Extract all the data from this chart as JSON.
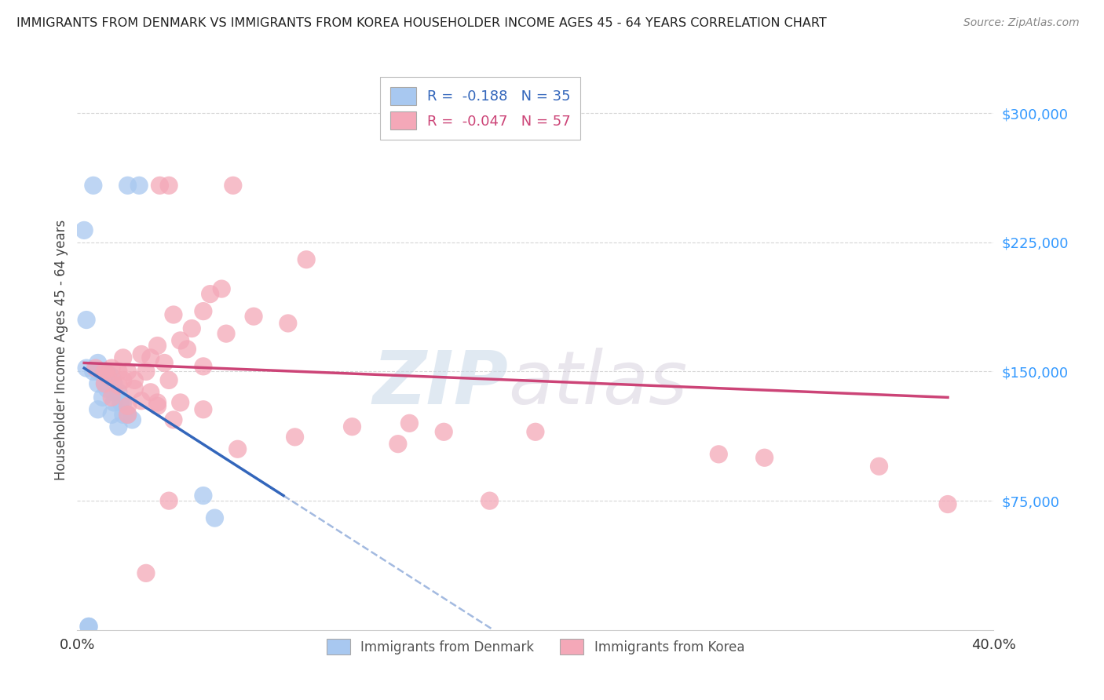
{
  "title": "IMMIGRANTS FROM DENMARK VS IMMIGRANTS FROM KOREA HOUSEHOLDER INCOME AGES 45 - 64 YEARS CORRELATION CHART",
  "source": "Source: ZipAtlas.com",
  "ylabel": "Householder Income Ages 45 - 64 years",
  "xlim": [
    0.0,
    0.4
  ],
  "ylim": [
    0,
    325000
  ],
  "yticks_right": [
    75000,
    150000,
    225000,
    300000
  ],
  "ytick_labels_right": [
    "$75,000",
    "$150,000",
    "$225,000",
    "$300,000"
  ],
  "legend_R_denmark": "-0.188",
  "legend_N_denmark": "35",
  "legend_R_korea": "-0.047",
  "legend_N_korea": "57",
  "denmark_color": "#a8c8f0",
  "korea_color": "#f4a8b8",
  "denmark_line_color": "#3366bb",
  "korea_line_color": "#cc4477",
  "denmark_line_x0": 0.003,
  "denmark_line_y0": 152000,
  "denmark_line_x1": 0.09,
  "denmark_line_y1": 78000,
  "denmark_line_xend": 0.4,
  "denmark_line_yend": -280000,
  "korea_line_x0": 0.003,
  "korea_line_y0": 155000,
  "korea_line_x1": 0.38,
  "korea_line_y1": 135000,
  "denmark_scatter": [
    [
      0.007,
      258000
    ],
    [
      0.022,
      258000
    ],
    [
      0.027,
      258000
    ],
    [
      0.003,
      232000
    ],
    [
      0.004,
      180000
    ],
    [
      0.009,
      155000
    ],
    [
      0.004,
      152000
    ],
    [
      0.007,
      150000
    ],
    [
      0.009,
      150000
    ],
    [
      0.01,
      150000
    ],
    [
      0.011,
      150000
    ],
    [
      0.012,
      150000
    ],
    [
      0.013,
      148000
    ],
    [
      0.014,
      148000
    ],
    [
      0.015,
      147000
    ],
    [
      0.009,
      143000
    ],
    [
      0.012,
      143000
    ],
    [
      0.016,
      143000
    ],
    [
      0.013,
      140000
    ],
    [
      0.016,
      138000
    ],
    [
      0.018,
      138000
    ],
    [
      0.011,
      135000
    ],
    [
      0.016,
      132000
    ],
    [
      0.019,
      132000
    ],
    [
      0.02,
      132000
    ],
    [
      0.009,
      128000
    ],
    [
      0.015,
      125000
    ],
    [
      0.02,
      125000
    ],
    [
      0.022,
      125000
    ],
    [
      0.024,
      122000
    ],
    [
      0.018,
      118000
    ],
    [
      0.055,
      78000
    ],
    [
      0.06,
      65000
    ],
    [
      0.005,
      2000
    ],
    [
      0.005,
      2000
    ]
  ],
  "korea_scatter": [
    [
      0.036,
      258000
    ],
    [
      0.04,
      258000
    ],
    [
      0.068,
      258000
    ],
    [
      0.1,
      215000
    ],
    [
      0.063,
      198000
    ],
    [
      0.058,
      195000
    ],
    [
      0.055,
      185000
    ],
    [
      0.042,
      183000
    ],
    [
      0.077,
      182000
    ],
    [
      0.092,
      178000
    ],
    [
      0.05,
      175000
    ],
    [
      0.065,
      172000
    ],
    [
      0.045,
      168000
    ],
    [
      0.035,
      165000
    ],
    [
      0.048,
      163000
    ],
    [
      0.028,
      160000
    ],
    [
      0.032,
      158000
    ],
    [
      0.02,
      158000
    ],
    [
      0.038,
      155000
    ],
    [
      0.055,
      153000
    ],
    [
      0.008,
      152000
    ],
    [
      0.015,
      152000
    ],
    [
      0.012,
      150000
    ],
    [
      0.018,
      150000
    ],
    [
      0.022,
      150000
    ],
    [
      0.03,
      150000
    ],
    [
      0.013,
      148000
    ],
    [
      0.02,
      145000
    ],
    [
      0.025,
      145000
    ],
    [
      0.04,
      145000
    ],
    [
      0.012,
      143000
    ],
    [
      0.018,
      142000
    ],
    [
      0.025,
      140000
    ],
    [
      0.032,
      138000
    ],
    [
      0.015,
      135000
    ],
    [
      0.028,
      133000
    ],
    [
      0.035,
      132000
    ],
    [
      0.045,
      132000
    ],
    [
      0.022,
      130000
    ],
    [
      0.035,
      130000
    ],
    [
      0.055,
      128000
    ],
    [
      0.022,
      125000
    ],
    [
      0.042,
      122000
    ],
    [
      0.145,
      120000
    ],
    [
      0.12,
      118000
    ],
    [
      0.16,
      115000
    ],
    [
      0.2,
      115000
    ],
    [
      0.095,
      112000
    ],
    [
      0.14,
      108000
    ],
    [
      0.07,
      105000
    ],
    [
      0.28,
      102000
    ],
    [
      0.3,
      100000
    ],
    [
      0.35,
      95000
    ],
    [
      0.04,
      75000
    ],
    [
      0.18,
      75000
    ],
    [
      0.38,
      73000
    ],
    [
      0.03,
      33000
    ]
  ],
  "watermark_zip": "ZIP",
  "watermark_atlas": "atlas",
  "background_color": "#ffffff",
  "grid_color": "#cccccc"
}
